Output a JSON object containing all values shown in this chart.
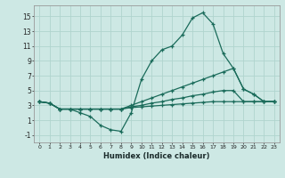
{
  "xlabel": "Humidex (Indice chaleur)",
  "bg_color": "#cde8e4",
  "line_color": "#1a6b5a",
  "grid_color": "#b0d4ce",
  "x_ticks": [
    0,
    1,
    2,
    3,
    4,
    5,
    6,
    7,
    8,
    9,
    10,
    11,
    12,
    13,
    14,
    15,
    16,
    17,
    18,
    19,
    20,
    21,
    22,
    23
  ],
  "y_ticks": [
    -1,
    1,
    3,
    5,
    7,
    9,
    11,
    13,
    15
  ],
  "ylim": [
    -2.0,
    16.5
  ],
  "xlim": [
    -0.5,
    23.5
  ],
  "series": [
    [
      3.5,
      3.3,
      2.5,
      2.5,
      2.0,
      1.5,
      0.3,
      -0.3,
      -0.5,
      2.0,
      6.5,
      9.0,
      10.5,
      11.0,
      12.5,
      14.8,
      15.5,
      14.0,
      10.0,
      8.0,
      5.2,
      4.5,
      3.5,
      3.5
    ],
    [
      3.5,
      3.3,
      2.5,
      2.5,
      2.5,
      2.5,
      2.5,
      2.5,
      2.5,
      3.0,
      3.5,
      4.0,
      4.5,
      5.0,
      5.5,
      6.0,
      6.5,
      7.0,
      7.5,
      8.0,
      5.2,
      4.5,
      3.5,
      3.5
    ],
    [
      3.5,
      3.3,
      2.5,
      2.5,
      2.5,
      2.5,
      2.5,
      2.5,
      2.5,
      2.8,
      3.0,
      3.3,
      3.5,
      3.8,
      4.0,
      4.3,
      4.5,
      4.8,
      5.0,
      5.0,
      3.5,
      3.5,
      3.5,
      3.5
    ],
    [
      3.5,
      3.3,
      2.5,
      2.5,
      2.5,
      2.5,
      2.5,
      2.5,
      2.5,
      2.7,
      2.8,
      2.9,
      3.0,
      3.1,
      3.2,
      3.3,
      3.4,
      3.5,
      3.5,
      3.5,
      3.5,
      3.5,
      3.5,
      3.5
    ]
  ]
}
